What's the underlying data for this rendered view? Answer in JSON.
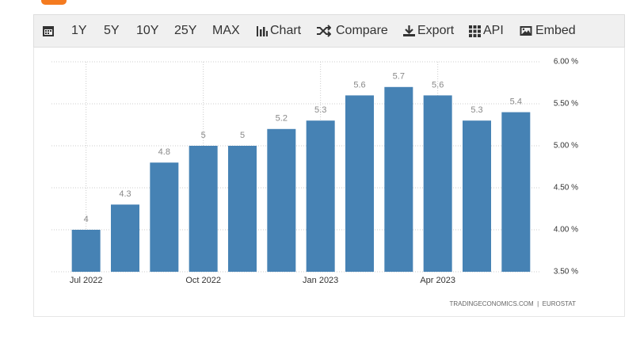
{
  "toolbar": {
    "items": [
      "1Y",
      "5Y",
      "10Y",
      "25Y",
      "MAX",
      "Chart",
      "Compare",
      "Export",
      "API",
      "Embed"
    ]
  },
  "chart_data": {
    "type": "bar",
    "categories": [
      "Jul 2022",
      null,
      null,
      "Oct 2022",
      null,
      null,
      "Jan 2023",
      null,
      null,
      "Apr 2023",
      null,
      null
    ],
    "values": [
      4,
      4.3,
      4.8,
      5,
      5,
      5.2,
      5.3,
      5.6,
      5.7,
      5.6,
      5.3,
      5.4
    ],
    "color": "#4682b4",
    "ylim": [
      3.5,
      6
    ],
    "yticks": [
      {
        "value": 3.5,
        "label": "3.50 %"
      },
      {
        "value": 4,
        "label": "4.00 %"
      },
      {
        "value": 4.5,
        "label": "4.50 %"
      },
      {
        "value": 5,
        "label": "5.00 %"
      },
      {
        "value": 5.5,
        "label": "5.50 %"
      },
      {
        "value": 6,
        "label": "6.00 %"
      }
    ],
    "grid": true,
    "source": "TRADINGECONOMICS.COM  |  EUROSTAT"
  }
}
